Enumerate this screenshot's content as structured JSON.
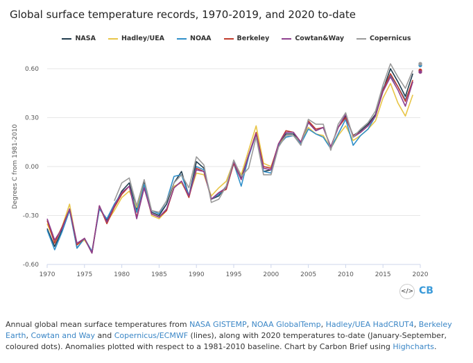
{
  "title": "Global surface temperature records, 1970-2019, and 2020 to-date",
  "caption": {
    "t1": "Annual global mean surface temperatures from ",
    "l1": "NASA GISTEMP",
    "t2": ", ",
    "l2": "NOAA GlobalTemp",
    "t3": ", ",
    "l3": "Hadley/UEA HadCRUT4",
    "t4": ", ",
    "l4": "Berkeley Earth",
    "t5": ", ",
    "l5": "Cowtan and Way",
    "t6": " and ",
    "l6": "Copernicus/ECMWF",
    "t7": " (lines), along with 2020 temperatures to-date (January-September, coloured dots). Anomalies plotted with respect to a 1981-2010 baseline. Chart by Carbon Brief using ",
    "l7": "Highcharts",
    "t8": "."
  },
  "embed_label": "</>",
  "logo": "CB",
  "chart_data": {
    "type": "line",
    "title": "Global surface temperature records, 1970-2019, and 2020 to-date",
    "xlabel": "",
    "ylabel": "Degrees C from 1981-2010",
    "xlim": [
      1970,
      2020
    ],
    "ylim": [
      -0.6,
      0.6
    ],
    "xticks": [
      1970,
      1975,
      1980,
      1985,
      1990,
      1995,
      2000,
      2005,
      2010,
      2015,
      2020
    ],
    "yticks": [
      0.6,
      0.3,
      0.0,
      -0.3,
      -0.6
    ],
    "ytick_labels": [
      "0.60",
      "0.30",
      "0.00",
      "-0.30",
      "-0.60"
    ],
    "x": [
      1970,
      1971,
      1972,
      1973,
      1974,
      1975,
      1976,
      1977,
      1978,
      1979,
      1980,
      1981,
      1982,
      1983,
      1984,
      1985,
      1986,
      1987,
      1988,
      1989,
      1990,
      1991,
      1992,
      1993,
      1994,
      1995,
      1996,
      1997,
      1998,
      1999,
      2000,
      2001,
      2002,
      2003,
      2004,
      2005,
      2006,
      2007,
      2008,
      2009,
      2010,
      2011,
      2012,
      2013,
      2014,
      2015,
      2016,
      2017,
      2018,
      2019
    ],
    "series": [
      {
        "name": "NASA",
        "color": "#1f3b4d",
        "values": [
          -0.38,
          -0.49,
          -0.39,
          -0.26,
          -0.5,
          -0.44,
          -0.53,
          -0.25,
          -0.33,
          -0.24,
          -0.15,
          -0.1,
          -0.27,
          -0.09,
          -0.28,
          -0.3,
          -0.23,
          -0.1,
          -0.03,
          -0.18,
          0.03,
          -0.01,
          -0.2,
          -0.18,
          -0.12,
          0.03,
          -0.07,
          0.07,
          0.2,
          -0.03,
          -0.02,
          0.13,
          0.2,
          0.2,
          0.14,
          0.27,
          0.22,
          0.24,
          0.12,
          0.24,
          0.31,
          0.19,
          0.22,
          0.26,
          0.32,
          0.47,
          0.6,
          0.52,
          0.43,
          0.57
        ]
      },
      {
        "name": "Hadley/UEA",
        "color": "#e8c547",
        "values": [
          -0.35,
          -0.46,
          -0.37,
          -0.23,
          -0.48,
          -0.45,
          -0.52,
          -0.25,
          -0.34,
          -0.27,
          -0.19,
          -0.15,
          -0.25,
          -0.11,
          -0.3,
          -0.32,
          -0.27,
          -0.12,
          -0.1,
          -0.18,
          -0.04,
          -0.05,
          -0.18,
          -0.13,
          -0.09,
          0.03,
          -0.05,
          0.1,
          0.25,
          0.02,
          0.0,
          0.13,
          0.19,
          0.19,
          0.15,
          0.24,
          0.2,
          0.19,
          0.11,
          0.19,
          0.25,
          0.16,
          0.19,
          0.23,
          0.28,
          0.42,
          0.51,
          0.39,
          0.31,
          0.44
        ]
      },
      {
        "name": "NOAA",
        "color": "#2f8fc9",
        "values": [
          -0.39,
          -0.51,
          -0.4,
          -0.27,
          -0.5,
          -0.44,
          -0.52,
          -0.26,
          -0.32,
          -0.23,
          -0.16,
          -0.12,
          -0.28,
          -0.11,
          -0.27,
          -0.29,
          -0.21,
          -0.06,
          -0.05,
          -0.18,
          0.0,
          -0.02,
          -0.2,
          -0.17,
          -0.13,
          0.02,
          -0.12,
          0.06,
          0.2,
          -0.03,
          -0.04,
          0.13,
          0.18,
          0.19,
          0.14,
          0.23,
          0.2,
          0.18,
          0.11,
          0.2,
          0.29,
          0.13,
          0.19,
          0.23,
          0.31,
          0.48,
          0.56,
          0.49,
          0.41,
          0.52
        ]
      },
      {
        "name": "Berkeley",
        "color": "#c0392b",
        "values": [
          -0.33,
          -0.47,
          -0.37,
          -0.26,
          -0.48,
          -0.44,
          -0.53,
          -0.24,
          -0.35,
          -0.25,
          -0.17,
          -0.12,
          -0.31,
          -0.13,
          -0.29,
          -0.31,
          -0.27,
          -0.13,
          -0.09,
          -0.19,
          -0.01,
          -0.03,
          -0.2,
          -0.16,
          -0.14,
          0.02,
          -0.08,
          0.07,
          0.21,
          0.0,
          -0.01,
          0.14,
          0.22,
          0.21,
          0.15,
          0.28,
          0.23,
          0.24,
          0.12,
          0.24,
          0.3,
          0.19,
          0.21,
          0.25,
          0.31,
          0.47,
          0.57,
          0.49,
          0.4,
          0.53
        ]
      },
      {
        "name": "Cowtan&Way",
        "color": "#8e3f8e",
        "values": [
          -0.32,
          -0.45,
          -0.38,
          -0.26,
          -0.47,
          -0.44,
          -0.53,
          -0.24,
          -0.34,
          -0.24,
          -0.16,
          -0.12,
          -0.32,
          -0.13,
          -0.29,
          -0.31,
          -0.26,
          -0.13,
          -0.09,
          -0.18,
          -0.02,
          -0.03,
          -0.2,
          -0.16,
          -0.13,
          0.03,
          -0.08,
          0.07,
          0.2,
          -0.01,
          -0.02,
          0.14,
          0.21,
          0.21,
          0.15,
          0.27,
          0.22,
          0.24,
          0.12,
          0.24,
          0.32,
          0.18,
          0.21,
          0.25,
          0.31,
          0.46,
          0.55,
          0.47,
          0.37,
          0.52
        ]
      },
      {
        "name": "Copernicus",
        "color": "#9a9a9a",
        "values": [
          null,
          null,
          null,
          null,
          null,
          null,
          null,
          null,
          null,
          -0.21,
          -0.1,
          -0.07,
          -0.24,
          -0.08,
          -0.27,
          -0.28,
          -0.21,
          -0.1,
          -0.05,
          -0.13,
          0.06,
          0.01,
          -0.22,
          -0.2,
          -0.12,
          0.04,
          -0.06,
          -0.01,
          0.18,
          -0.05,
          -0.05,
          0.12,
          0.19,
          0.19,
          0.13,
          0.29,
          0.26,
          0.26,
          0.1,
          0.26,
          0.33,
          0.18,
          0.23,
          0.27,
          0.34,
          0.5,
          0.63,
          0.55,
          0.48,
          0.59
        ]
      }
    ],
    "points_2020": [
      {
        "name": "NASA",
        "value": 0.63
      },
      {
        "name": "Hadley/UEA",
        "value": 0.58
      },
      {
        "name": "NOAA",
        "value": 0.62
      },
      {
        "name": "Berkeley",
        "value": 0.59
      },
      {
        "name": "Cowtan&Way",
        "value": 0.58
      },
      {
        "name": "Copernicus",
        "value": 0.63
      }
    ]
  }
}
